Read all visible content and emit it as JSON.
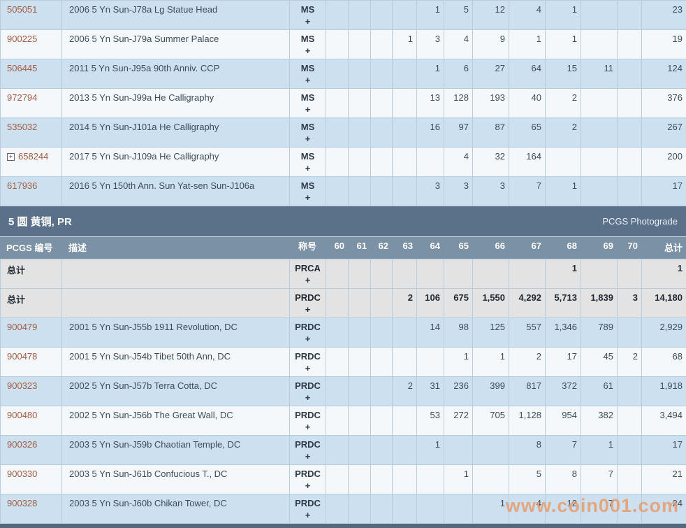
{
  "colors": {
    "row_blue": "#cde0f0",
    "row_white": "#f4f8fb",
    "row_gray": "#e3e3e3",
    "cell_border": "#b7cddd",
    "section_header_bg": "#5b7189",
    "column_header_bg": "#7b91a6",
    "link": "#a35c45",
    "body_text": "#3d4c5a",
    "watermark": "#e89a66"
  },
  "grade_columns": [
    "60",
    "61",
    "62",
    "63",
    "64",
    "65",
    "66",
    "67",
    "68",
    "69",
    "70",
    "总计"
  ],
  "headers": {
    "pcgs_number": "PCGS 编号",
    "description": "描述",
    "designation": "称号"
  },
  "section_ms": {
    "rows": [
      {
        "id": "505051",
        "expandable": false,
        "description": "2006 5 Yn Sun-J78a Lg Statue Head",
        "designation": "MS",
        "plus": "+",
        "grades": [
          "",
          "",
          "",
          "",
          "1",
          "5",
          "12",
          "4",
          "1",
          "",
          ""
        ],
        "total": "23"
      },
      {
        "id": "900225",
        "expandable": false,
        "description": "2006 5 Yn Sun-J79a Summer Palace",
        "designation": "MS",
        "plus": "+",
        "grades": [
          "",
          "",
          "",
          "1",
          "3",
          "4",
          "9",
          "1",
          "1",
          "",
          ""
        ],
        "total": "19"
      },
      {
        "id": "506445",
        "expandable": false,
        "description": "2011 5 Yn Sun-J95a 90th Anniv. CCP",
        "designation": "MS",
        "plus": "+",
        "grades": [
          "",
          "",
          "",
          "",
          "1",
          "6",
          "27",
          "64",
          "15",
          "11",
          ""
        ],
        "total": "124"
      },
      {
        "id": "972794",
        "expandable": false,
        "description": "2013 5 Yn Sun-J99a He Calligraphy",
        "designation": "MS",
        "plus": "+",
        "grades": [
          "",
          "",
          "",
          "",
          "13",
          "128",
          "193",
          "40",
          "2",
          "",
          ""
        ],
        "total": "376"
      },
      {
        "id": "535032",
        "expandable": false,
        "description": "2014 5 Yn Sun-J101a He Calligraphy",
        "designation": "MS",
        "plus": "+",
        "grades": [
          "",
          "",
          "",
          "",
          "16",
          "97",
          "87",
          "65",
          "2",
          "",
          ""
        ],
        "total": "267"
      },
      {
        "id": "658244",
        "expandable": true,
        "expand_glyph": "+",
        "description": "2017 5 Yn Sun-J109a He Calligraphy",
        "designation": "MS",
        "plus": "+",
        "grades": [
          "",
          "",
          "",
          "",
          "",
          "4",
          "32",
          "164",
          "",
          "",
          ""
        ],
        "total": "200"
      },
      {
        "id": "617936",
        "expandable": false,
        "description": "2016 5 Yn 150th Ann. Sun Yat-sen Sun-J106a",
        "designation": "MS",
        "plus": "+",
        "grades": [
          "",
          "",
          "",
          "",
          "3",
          "3",
          "3",
          "7",
          "1",
          "",
          ""
        ],
        "total": "17"
      }
    ]
  },
  "section_pr": {
    "title": "5 圆 黄铜, PR",
    "right_label": "PCGS Photograde",
    "total_rows": [
      {
        "id": "总计",
        "expandable": false,
        "description": "",
        "designation": "PRCA",
        "plus": "+",
        "grades": [
          "",
          "",
          "",
          "",
          "",
          "",
          "",
          "",
          "1",
          "",
          ""
        ],
        "total": "1"
      },
      {
        "id": "总计",
        "expandable": false,
        "description": "",
        "designation": "PRDC",
        "plus": "+",
        "grades": [
          "",
          "",
          "",
          "2",
          "106",
          "675",
          "1,550",
          "4,292",
          "5,713",
          "1,839",
          "3"
        ],
        "total": "14,180"
      }
    ],
    "rows": [
      {
        "id": "900479",
        "expandable": false,
        "description": "2001 5 Yn Sun-J55b 1911 Revolution, DC",
        "designation": "PRDC",
        "plus": "+",
        "grades": [
          "",
          "",
          "",
          "",
          "14",
          "98",
          "125",
          "557",
          "1,346",
          "789",
          ""
        ],
        "total": "2,929"
      },
      {
        "id": "900478",
        "expandable": false,
        "description": "2001 5 Yn Sun-J54b Tibet 50th Ann, DC",
        "designation": "PRDC",
        "plus": "+",
        "grades": [
          "",
          "",
          "",
          "",
          "",
          "1",
          "1",
          "2",
          "17",
          "45",
          "2"
        ],
        "total": "68"
      },
      {
        "id": "900323",
        "expandable": false,
        "description": "2002 5 Yn Sun-J57b Terra Cotta, DC",
        "designation": "PRDC",
        "plus": "+",
        "grades": [
          "",
          "",
          "",
          "2",
          "31",
          "236",
          "399",
          "817",
          "372",
          "61",
          ""
        ],
        "total": "1,918"
      },
      {
        "id": "900480",
        "expandable": false,
        "description": "2002 5 Yn Sun-J56b The Great Wall, DC",
        "designation": "PRDC",
        "plus": "+",
        "grades": [
          "",
          "",
          "",
          "",
          "53",
          "272",
          "705",
          "1,128",
          "954",
          "382",
          ""
        ],
        "total": "3,494"
      },
      {
        "id": "900326",
        "expandable": false,
        "description": "2003 5 Yn Sun-J59b Chaotian Temple, DC",
        "designation": "PRDC",
        "plus": "+",
        "grades": [
          "",
          "",
          "",
          "",
          "1",
          "",
          "",
          "8",
          "7",
          "1",
          ""
        ],
        "total": "17"
      },
      {
        "id": "900330",
        "expandable": false,
        "description": "2003 5 Yn Sun-J61b Confucious T., DC",
        "designation": "PRDC",
        "plus": "+",
        "grades": [
          "",
          "",
          "",
          "",
          "",
          "1",
          "",
          "5",
          "8",
          "7",
          ""
        ],
        "total": "21"
      },
      {
        "id": "900328",
        "expandable": false,
        "description": "2003 5 Yn Sun-J60b Chikan Tower, DC",
        "designation": "PRDC",
        "plus": "+",
        "grades": [
          "",
          "",
          "",
          "",
          "",
          "",
          "1",
          "4",
          "12",
          "7",
          ""
        ],
        "total": "24"
      }
    ]
  },
  "watermark": "www.coin001.com"
}
